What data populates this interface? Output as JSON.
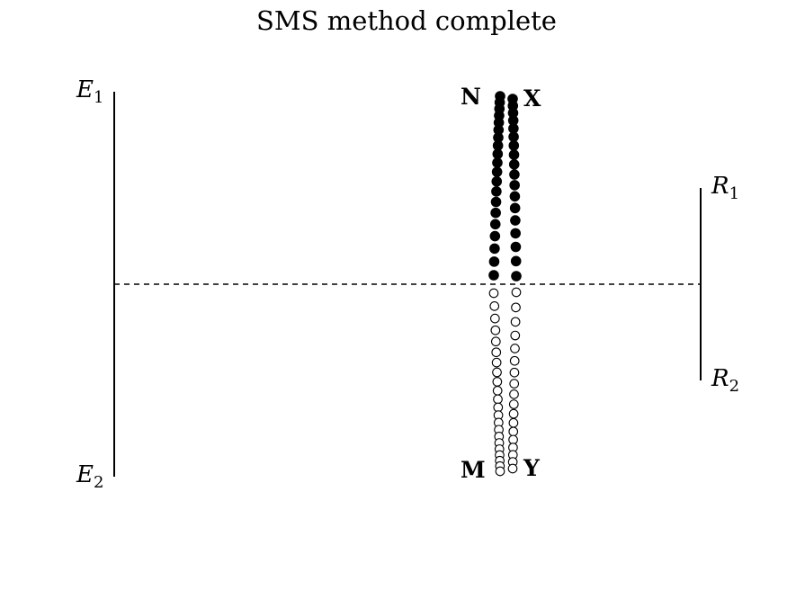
{
  "title": "SMS method complete",
  "edges": {
    "E1": {
      "letter": "E",
      "sub": "1"
    },
    "E2": {
      "letter": "E",
      "sub": "2"
    },
    "R1": {
      "letter": "R",
      "sub": "1"
    },
    "R2": {
      "letter": "R",
      "sub": "2"
    }
  },
  "points": {
    "N": "N",
    "X": "X",
    "M": "M",
    "Y": "Y"
  },
  "colors": {
    "ink": "#000000",
    "filled": "#000000",
    "hollow": "#ffffff"
  }
}
